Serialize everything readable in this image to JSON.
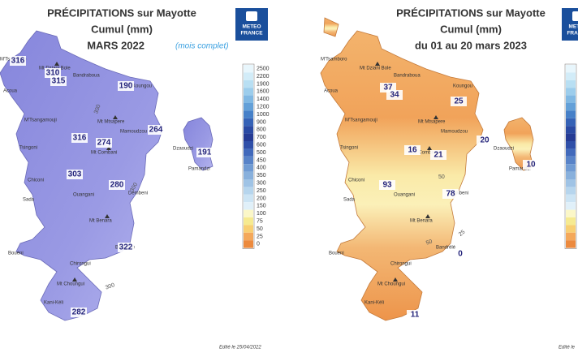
{
  "left": {
    "title": "PRÉCIPITATIONS sur Mayotte",
    "subtitle": "Cumul (mm)",
    "period": "MARS 2022",
    "note": "(mois complet)",
    "logo": [
      "METEO",
      "FRANCE"
    ],
    "stations": [
      316,
      310,
      315,
      190,
      264,
      316,
      274,
      191,
      303,
      280,
      322,
      282
    ],
    "contours": [
      "300",
      "300",
      "300"
    ],
    "edited": "Edité le 25/04/2022"
  },
  "right": {
    "title": "PRÉCIPITATIONS sur Mayotte",
    "subtitle": "Cumul (mm)",
    "period": "du 01 au 20 mars 2023",
    "logo": [
      "METEO",
      "FRANCE"
    ],
    "stations": [
      37,
      34,
      25,
      16,
      21,
      20,
      10,
      93,
      78,
      0,
      11
    ],
    "contours": [
      "50",
      "50",
      "25"
    ],
    "edited": "Edité le"
  },
  "places": [
    "M'Tsamboro",
    "Mt Dziani Bole",
    "Bandraboua",
    "Acoua",
    "Koungou",
    "M'Tsangamouji",
    "Mt Mtsapere",
    "Mamoudzou",
    "Tsingoni",
    "Mt Combani",
    "Dzaoudzi",
    "Pamandzi",
    "Chiconi",
    "Sada",
    "Ouangani",
    "Dembeni",
    "Mt Benara",
    "Bandrélé",
    "Bouéni",
    "Chirongui",
    "Mt Choungui",
    "Kani-Kéli"
  ],
  "legend": {
    "labels": [
      2500,
      2200,
      1900,
      1600,
      1400,
      1200,
      1000,
      900,
      800,
      700,
      600,
      500,
      450,
      400,
      350,
      300,
      250,
      200,
      150,
      100,
      75,
      50,
      25,
      0
    ],
    "colors": [
      "#e8f6fc",
      "#d2ecf8",
      "#b8dff3",
      "#9ccdec",
      "#80b8e3",
      "#63a0d8",
      "#4680c8",
      "#3562b6",
      "#2a4aa3",
      "#253b94",
      "#2f4fa8",
      "#4169bb",
      "#5883c8",
      "#709bd3",
      "#88b0dc",
      "#9fc3e5",
      "#b6d5ed",
      "#cce4f4",
      "#e0f0f9",
      "#fbf7c8",
      "#f6ea90",
      "#f8cf72",
      "#f4a85a",
      "#ec8a3e"
    ]
  }
}
